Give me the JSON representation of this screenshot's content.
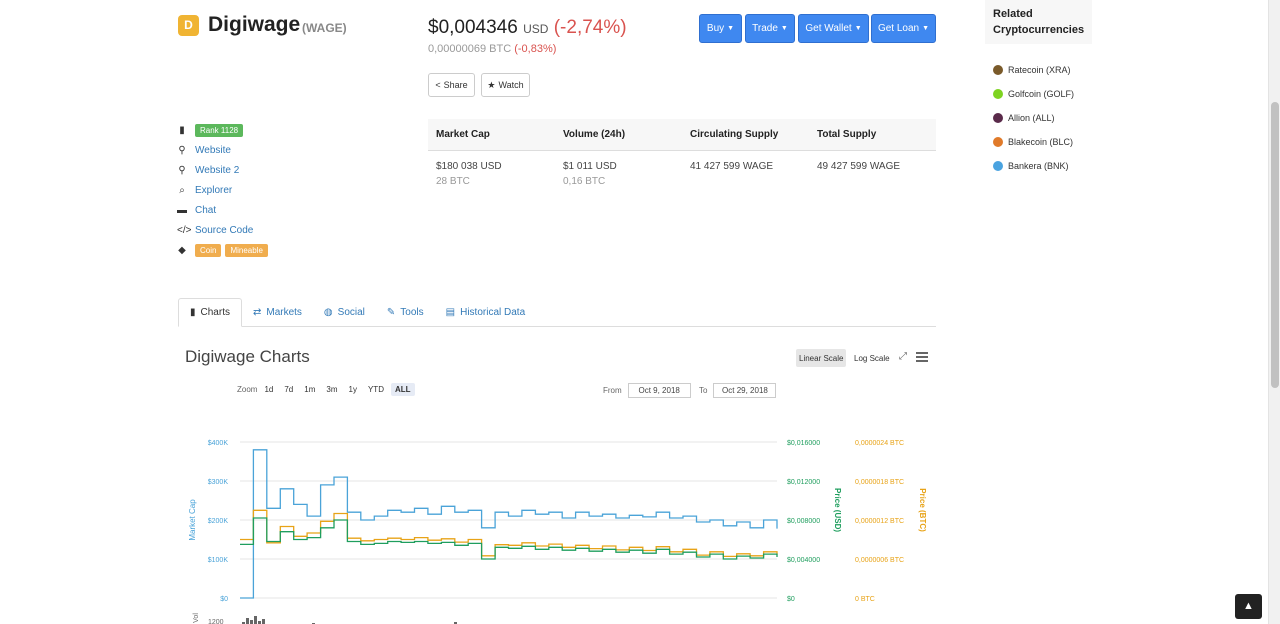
{
  "coin": {
    "logo_glyph": "D",
    "name": "Digiwage",
    "symbol": "(WAGE)",
    "price_usd": "$0,004346",
    "price_currency": "USD",
    "price_change": "(-2,74%)",
    "price_btc": "0,00000069 BTC",
    "price_btc_change": "(-0,83%)"
  },
  "actions": {
    "share": "Share",
    "watch": "Watch",
    "buy": "Buy",
    "trade": "Trade",
    "get_wallet": "Get Wallet",
    "get_loan": "Get Loan"
  },
  "related": {
    "title_line1": "Related",
    "title_line2": "Cryptocurrencies",
    "items": [
      {
        "label": "Ratecoin (XRA)",
        "color": "#7a5a2a"
      },
      {
        "label": "Golfcoin (GOLF)",
        "color": "#7ed321"
      },
      {
        "label": "Allion (ALL)",
        "color": "#5a2a4a"
      },
      {
        "label": "Blakecoin (BLC)",
        "color": "#e07a2a"
      },
      {
        "label": "Bankera (BNK)",
        "color": "#4aa3e0"
      }
    ]
  },
  "info": {
    "rank": "Rank 1128",
    "website": "Website",
    "website2": "Website 2",
    "explorer": "Explorer",
    "chat": "Chat",
    "source_code": "Source Code",
    "tag_coin": "Coin",
    "tag_mineable": "Mineable"
  },
  "stats": {
    "headers": [
      "Market Cap",
      "Volume (24h)",
      "Circulating Supply",
      "Total Supply"
    ],
    "market_cap_usd": "$180 038 USD",
    "market_cap_btc": "28 BTC",
    "volume_usd": "$1 011 USD",
    "volume_btc": "0,16 BTC",
    "circulating": "41 427 599 WAGE",
    "total": "49 427 599 WAGE"
  },
  "tabs": [
    {
      "label": "Charts",
      "icon": "bar-chart-icon"
    },
    {
      "label": "Markets",
      "icon": "exchange-icon"
    },
    {
      "label": "Social",
      "icon": "globe-icon"
    },
    {
      "label": "Tools",
      "icon": "wrench-icon"
    },
    {
      "label": "Historical Data",
      "icon": "table-icon"
    }
  ],
  "chart_panel": {
    "title": "Digiwage Charts",
    "linear_scale": "Linear Scale",
    "log_scale": "Log Scale",
    "zoom_label": "Zoom",
    "zoom_options": [
      "1d",
      "7d",
      "1m",
      "3m",
      "1y",
      "YTD",
      "ALL"
    ],
    "zoom_active": "ALL",
    "from_label": "From",
    "from_value": "Oct 9, 2018",
    "to_label": "To",
    "to_value": "Oct 29, 2018"
  },
  "chart_data": {
    "type": "line",
    "title": "",
    "x_range": [
      "Oct 9, 2018",
      "Oct 29, 2018"
    ],
    "y_left": {
      "label": "Market Cap",
      "ticks": [
        "$0",
        "$100K",
        "$200K",
        "$300K",
        "$400K"
      ],
      "range": [
        0,
        400000
      ],
      "color": "#4aa3d8"
    },
    "y_right1": {
      "label": "Price (USD)",
      "ticks": [
        "$0",
        "$0,004000",
        "$0,008000",
        "$0,012000",
        "$0,016000"
      ],
      "range": [
        0,
        0.016
      ],
      "color": "#1f9e5e"
    },
    "y_right2": {
      "label": "Price (BTC)",
      "ticks": [
        "0 BTC",
        "0,0000006 BTC",
        "0,0000012 BTC",
        "0,0000018 BTC",
        "0,0000024 BTC"
      ],
      "range": [
        0,
        2.4e-06
      ],
      "color": "#e8a317"
    },
    "volume_axis": {
      "label": "Vol",
      "first_tick": "1200"
    },
    "series": [
      {
        "name": "Market Cap",
        "color": "#4aa3d8",
        "x": [
          0,
          0.5,
          1,
          1.5,
          2,
          2.5,
          3,
          3.5,
          4,
          4.5,
          5,
          5.5,
          6,
          6.5,
          7,
          7.5,
          8,
          8.5,
          9,
          9.5,
          10,
          10.5,
          11,
          11.5,
          12,
          12.5,
          13,
          13.5,
          14,
          14.5,
          15,
          15.5,
          16,
          16.5,
          17,
          17.5,
          18,
          18.5,
          19,
          19.5,
          20
        ],
        "values": [
          0,
          380000,
          230000,
          280000,
          240000,
          210000,
          290000,
          310000,
          220000,
          200000,
          210000,
          225000,
          220000,
          230000,
          215000,
          235000,
          220000,
          225000,
          180000,
          220000,
          210000,
          225000,
          215000,
          220000,
          205000,
          220000,
          210000,
          215000,
          205000,
          212000,
          208000,
          220000,
          205000,
          210000,
          195000,
          200000,
          185000,
          195000,
          180000,
          200000,
          178000
        ]
      },
      {
        "name": "Price (USD)",
        "color": "#1f9e5e",
        "x": [
          0,
          0.5,
          1,
          1.5,
          2,
          2.5,
          3,
          3.5,
          4,
          4.5,
          5,
          5.5,
          6,
          6.5,
          7,
          7.5,
          8,
          8.5,
          9,
          9.5,
          10,
          10.5,
          11,
          11.5,
          12,
          12.5,
          13,
          13.5,
          14,
          14.5,
          15,
          15.5,
          16,
          16.5,
          17,
          17.5,
          18,
          18.5,
          19,
          19.5,
          20
        ],
        "values": [
          0.0055,
          0.0082,
          0.0058,
          0.0068,
          0.006,
          0.0062,
          0.0072,
          0.008,
          0.0058,
          0.0055,
          0.0056,
          0.0058,
          0.0057,
          0.0058,
          0.0056,
          0.0057,
          0.0054,
          0.0056,
          0.004,
          0.0052,
          0.0051,
          0.0053,
          0.005,
          0.0052,
          0.0049,
          0.0051,
          0.0048,
          0.005,
          0.0047,
          0.0049,
          0.0046,
          0.005,
          0.0045,
          0.0047,
          0.0042,
          0.0045,
          0.004,
          0.0043,
          0.0041,
          0.0045,
          0.0042
        ]
      },
      {
        "name": "Price (BTC)",
        "color": "#e8a317",
        "x": [
          0,
          0.5,
          1,
          1.5,
          2,
          2.5,
          3,
          3.5,
          4,
          4.5,
          5,
          5.5,
          6,
          6.5,
          7,
          7.5,
          8,
          8.5,
          9,
          9.5,
          10,
          10.5,
          11,
          11.5,
          12,
          12.5,
          13,
          13.5,
          14,
          14.5,
          15,
          15.5,
          16,
          16.5,
          17,
          17.5,
          18,
          18.5,
          19,
          19.5,
          20
        ],
        "values": [
          9e-07,
          1.35e-06,
          8.5e-07,
          1.1e-06,
          9.5e-07,
          1e-06,
          1.18e-06,
          1.3e-06,
          9.2e-07,
          8.8e-07,
          9e-07,
          9.2e-07,
          9e-07,
          9.3e-07,
          8.9e-07,
          9.1e-07,
          8.6e-07,
          9e-07,
          6.5e-07,
          8.2e-07,
          8.1e-07,
          8.5e-07,
          8e-07,
          8.3e-07,
          7.8e-07,
          8.1e-07,
          7.6e-07,
          8e-07,
          7.4e-07,
          7.8e-07,
          7.3e-07,
          7.9e-07,
          7.1e-07,
          7.5e-07,
          6.6e-07,
          7.1e-07,
          6.4e-07,
          6.8e-07,
          6.5e-07,
          7.1e-07,
          6.6e-07
        ]
      }
    ],
    "grid": true,
    "legend": "none"
  }
}
